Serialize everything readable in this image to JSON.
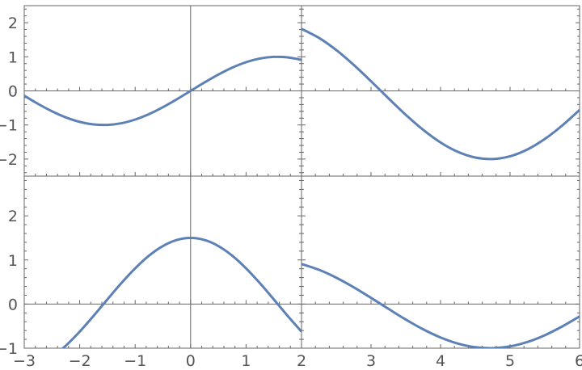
{
  "chart_data": [
    {
      "type": "line",
      "panel": "top-left",
      "xlim": [
        -3,
        2
      ],
      "ylim": [
        -2.5,
        2.5
      ],
      "yticks": [
        "-2",
        "-1",
        "0",
        "1",
        "2"
      ],
      "series": [
        {
          "x": [
            -3,
            -2.75,
            -2.5,
            -2.25,
            -2,
            -1.75,
            -1.5,
            -1.25,
            -1,
            -0.75,
            -0.5,
            -0.25,
            0,
            0.25,
            0.5,
            0.75,
            1,
            1.25,
            1.5,
            1.75,
            2
          ],
          "y": [
            -0.141,
            -0.382,
            -0.598,
            -0.778,
            -0.909,
            -0.984,
            -0.997,
            -0.949,
            -0.841,
            -0.682,
            -0.479,
            -0.247,
            0,
            0.247,
            0.479,
            0.682,
            0.841,
            0.949,
            0.997,
            0.984,
            0.909
          ]
        }
      ]
    },
    {
      "type": "line",
      "panel": "top-right",
      "xlim": [
        2,
        6
      ],
      "ylim": [
        -2.5,
        2.5
      ],
      "series": [
        {
          "x": [
            2,
            2.25,
            2.5,
            2.75,
            3,
            3.25,
            3.5,
            3.75,
            4,
            4.25,
            4.5,
            4.75,
            5,
            5.25,
            5.5,
            5.75,
            6
          ],
          "y": [
            1.819,
            1.556,
            1.197,
            0.763,
            0.282,
            -0.216,
            -0.702,
            -1.143,
            -1.514,
            -1.79,
            -1.955,
            -1.998,
            -1.918,
            -1.718,
            -1.411,
            -1.016,
            -0.559
          ]
        }
      ]
    },
    {
      "type": "line",
      "panel": "bottom-left",
      "xlim": [
        -3,
        2
      ],
      "ylim": [
        -1,
        2.9
      ],
      "yticks": [
        "-1",
        "0",
        "1",
        "2"
      ],
      "xticks": [
        "-3",
        "-2",
        "-1",
        "0",
        "1",
        "2"
      ],
      "series": [
        {
          "x": [
            -3,
            -2.75,
            -2.5,
            -2.25,
            -2,
            -1.75,
            -1.5,
            -1.25,
            -1,
            -0.75,
            -0.5,
            -0.25,
            0,
            0.25,
            0.5,
            0.75,
            1,
            1.25,
            1.5,
            1.75,
            2
          ],
          "y": [
            -1.485,
            -1.386,
            -1.202,
            -0.942,
            -0.624,
            -0.267,
            0.106,
            0.473,
            0.81,
            1.098,
            1.316,
            1.453,
            1.5,
            1.453,
            1.316,
            1.098,
            0.81,
            0.473,
            0.106,
            -0.267,
            -0.624
          ]
        }
      ]
    },
    {
      "type": "line",
      "panel": "bottom-right",
      "xlim": [
        2,
        6
      ],
      "ylim": [
        -1,
        2.9
      ],
      "xticks": [
        "3",
        "4",
        "5",
        "6"
      ],
      "series": [
        {
          "x": [
            2,
            2.25,
            2.5,
            2.75,
            3,
            3.25,
            3.5,
            3.75,
            4,
            4.25,
            4.5,
            4.75,
            5,
            5.25,
            5.5,
            5.75,
            6
          ],
          "y": [
            0.909,
            0.778,
            0.598,
            0.382,
            0.141,
            -0.108,
            -0.351,
            -0.572,
            -0.757,
            -0.895,
            -0.978,
            -0.999,
            -0.959,
            -0.859,
            -0.706,
            -0.508,
            -0.279
          ]
        }
      ]
    }
  ],
  "colors": {
    "curve": "#5e81b5",
    "axis": "#666666",
    "text": "#555555"
  }
}
